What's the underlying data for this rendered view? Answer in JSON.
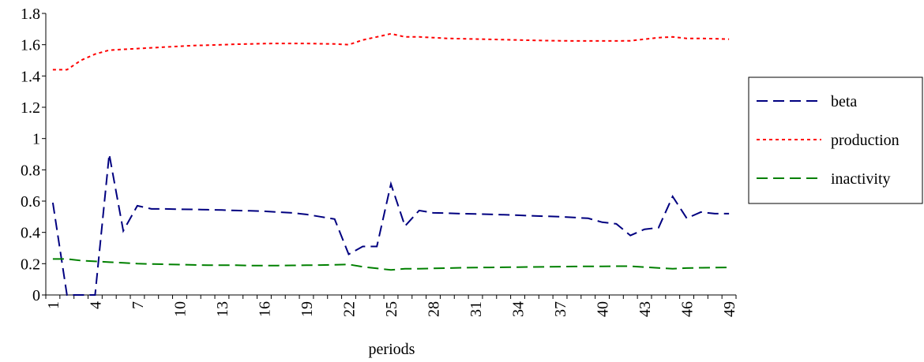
{
  "chart_data": {
    "type": "line",
    "title": "",
    "xlabel": "periods",
    "ylabel": "",
    "ylim": [
      0,
      1.8
    ],
    "ytick_labels": [
      "0",
      "0.2",
      "0.4",
      "0.6",
      "0.8",
      "1",
      "1.2",
      "1.4",
      "1.6",
      "1.8"
    ],
    "xtick_labels": [
      "1",
      "4",
      "7",
      "10",
      "13",
      "16",
      "19",
      "22",
      "25",
      "28",
      "31",
      "34",
      "37",
      "40",
      "43",
      "46",
      "49"
    ],
    "x": [
      1,
      2,
      3,
      4,
      5,
      6,
      7,
      8,
      9,
      10,
      11,
      12,
      13,
      14,
      15,
      16,
      17,
      18,
      19,
      20,
      21,
      22,
      23,
      24,
      25,
      26,
      27,
      28,
      29,
      30,
      31,
      32,
      33,
      34,
      35,
      36,
      37,
      38,
      39,
      40,
      41,
      42,
      43,
      44,
      45,
      46,
      47,
      48,
      49
    ],
    "grid": false,
    "legend_position": "right",
    "series": [
      {
        "name": "beta",
        "color": "#000080",
        "dash": "long-dash",
        "values": [
          0.59,
          0.0,
          0.0,
          0.0,
          0.9,
          0.41,
          0.57,
          0.55,
          0.55,
          0.548,
          0.547,
          0.545,
          0.543,
          0.54,
          0.538,
          0.535,
          0.53,
          0.525,
          0.515,
          0.5,
          0.485,
          0.26,
          0.31,
          0.31,
          0.71,
          0.44,
          0.54,
          0.525,
          0.523,
          0.52,
          0.518,
          0.516,
          0.513,
          0.51,
          0.506,
          0.503,
          0.5,
          0.495,
          0.49,
          0.465,
          0.455,
          0.38,
          0.42,
          0.43,
          0.63,
          0.49,
          0.53,
          0.52,
          0.52
        ]
      },
      {
        "name": "production",
        "color": "#ff0000",
        "dash": "dotted",
        "values": [
          1.44,
          1.44,
          1.5,
          1.54,
          1.565,
          1.57,
          1.575,
          1.58,
          1.585,
          1.59,
          1.595,
          1.597,
          1.6,
          1.603,
          1.605,
          1.607,
          1.608,
          1.608,
          1.608,
          1.606,
          1.605,
          1.6,
          1.63,
          1.65,
          1.67,
          1.65,
          1.65,
          1.645,
          1.64,
          1.638,
          1.636,
          1.634,
          1.632,
          1.63,
          1.628,
          1.626,
          1.625,
          1.624,
          1.624,
          1.624,
          1.624,
          1.625,
          1.635,
          1.645,
          1.65,
          1.64,
          1.64,
          1.638,
          1.635
        ]
      },
      {
        "name": "inactivity",
        "color": "#008000",
        "dash": "dashed",
        "values": [
          0.23,
          0.23,
          0.22,
          0.215,
          0.21,
          0.205,
          0.2,
          0.198,
          0.196,
          0.194,
          0.192,
          0.19,
          0.19,
          0.19,
          0.188,
          0.188,
          0.188,
          0.189,
          0.19,
          0.191,
          0.193,
          0.195,
          0.18,
          0.17,
          0.16,
          0.168,
          0.168,
          0.17,
          0.172,
          0.174,
          0.175,
          0.176,
          0.177,
          0.178,
          0.179,
          0.18,
          0.181,
          0.182,
          0.183,
          0.183,
          0.184,
          0.184,
          0.178,
          0.173,
          0.168,
          0.172,
          0.174,
          0.175,
          0.176
        ]
      }
    ]
  }
}
